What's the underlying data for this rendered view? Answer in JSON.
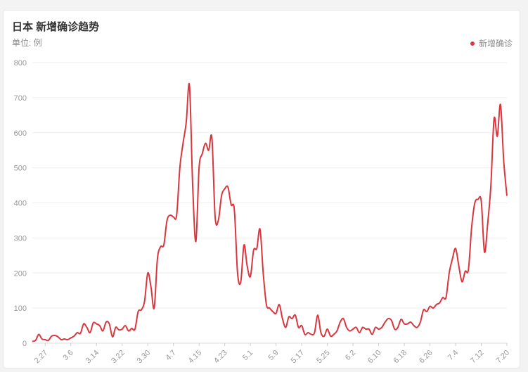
{
  "header": {
    "title": "日本 新增确诊趋势",
    "unit": "单位: 例"
  },
  "colors": {
    "line": "#d9363e",
    "grid": "#eeeeee",
    "tick": "#999999"
  },
  "chart_data": {
    "type": "line",
    "title": "日本 新增确诊趋势",
    "ylabel": "单位: 例",
    "ylim": [
      0,
      800
    ],
    "yticks": [
      0,
      100,
      200,
      300,
      400,
      500,
      600,
      700,
      800
    ],
    "grid": true,
    "legend_position": "top-right",
    "xticks": [
      "2.27",
      "3.6",
      "3.14",
      "3.22",
      "3.30",
      "4.7",
      "4.15",
      "4.23",
      "5.1",
      "5.9",
      "5.17",
      "5.25",
      "6.2",
      "6.10",
      "6.18",
      "6.26",
      "7.4",
      "7.12",
      "7.20"
    ],
    "xtick_index": [
      4,
      12,
      20,
      28,
      36,
      44,
      52,
      60,
      68,
      76,
      84,
      92,
      100,
      108,
      116,
      124,
      132,
      140,
      148
    ],
    "series": [
      {
        "name": "新增确诊",
        "values": [
          5,
          8,
          25,
          12,
          10,
          8,
          20,
          22,
          18,
          10,
          12,
          10,
          15,
          20,
          30,
          28,
          55,
          45,
          30,
          58,
          55,
          50,
          35,
          60,
          55,
          18,
          45,
          38,
          40,
          50,
          35,
          42,
          40,
          90,
          95,
          120,
          200,
          160,
          100,
          240,
          275,
          280,
          350,
          365,
          360,
          365,
          500,
          570,
          630,
          735,
          450,
          290,
          500,
          540,
          570,
          550,
          585,
          360,
          350,
          420,
          440,
          445,
          395,
          380,
          200,
          175,
          280,
          220,
          190,
          265,
          270,
          325,
          200,
          110,
          100,
          90,
          85,
          110,
          70,
          45,
          75,
          70,
          80,
          45,
          50,
          25,
          30,
          25,
          30,
          80,
          30,
          20,
          40,
          20,
          25,
          35,
          60,
          70,
          45,
          35,
          40,
          45,
          30,
          45,
          40,
          40,
          25,
          45,
          40,
          45,
          60,
          70,
          65,
          40,
          45,
          68,
          55,
          55,
          60,
          50,
          45,
          60,
          95,
          90,
          105,
          100,
          110,
          115,
          130,
          130,
          200,
          240,
          270,
          220,
          175,
          205,
          210,
          330,
          400,
          410,
          405,
          260,
          340,
          450,
          640,
          590,
          680,
          520,
          420
        ]
      }
    ]
  }
}
